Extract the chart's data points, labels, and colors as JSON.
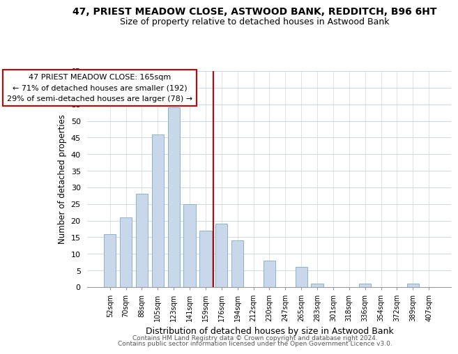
{
  "title": "47, PRIEST MEADOW CLOSE, ASTWOOD BANK, REDDITCH, B96 6HT",
  "subtitle": "Size of property relative to detached houses in Astwood Bank",
  "xlabel": "Distribution of detached houses by size in Astwood Bank",
  "ylabel": "Number of detached properties",
  "bar_labels": [
    "52sqm",
    "70sqm",
    "88sqm",
    "105sqm",
    "123sqm",
    "141sqm",
    "159sqm",
    "176sqm",
    "194sqm",
    "212sqm",
    "230sqm",
    "247sqm",
    "265sqm",
    "283sqm",
    "301sqm",
    "318sqm",
    "336sqm",
    "354sqm",
    "372sqm",
    "389sqm",
    "407sqm"
  ],
  "bar_values": [
    16,
    21,
    28,
    46,
    54,
    25,
    17,
    19,
    14,
    0,
    8,
    0,
    6,
    1,
    0,
    0,
    1,
    0,
    0,
    1,
    0
  ],
  "bar_color": "#c8d8ea",
  "bar_edge_color": "#7aaac8",
  "highlight_line_color": "#cc0000",
  "ylim": [
    0,
    65
  ],
  "yticks": [
    0,
    5,
    10,
    15,
    20,
    25,
    30,
    35,
    40,
    45,
    50,
    55,
    60,
    65
  ],
  "annotation_title": "47 PRIEST MEADOW CLOSE: 165sqm",
  "annotation_line1": "← 71% of detached houses are smaller (192)",
  "annotation_line2": "29% of semi-detached houses are larger (78) →",
  "annotation_box_color": "#ffffff",
  "annotation_box_edge": "#cc0000",
  "footer1": "Contains HM Land Registry data © Crown copyright and database right 2024.",
  "footer2": "Contains public sector information licensed under the Open Government Licence v3.0.",
  "bg_color": "#ffffff",
  "grid_color": "#d0d8e0"
}
